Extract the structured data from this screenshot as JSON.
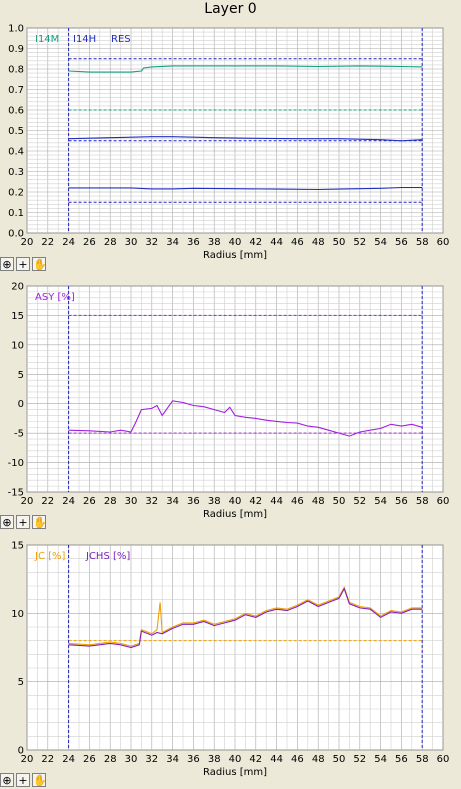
{
  "title": "Layer 0",
  "colors": {
    "grid": "#a8a8a8",
    "gridMinor": "#d0d0d0",
    "marker": "#2020c0",
    "I14M": "#10a080",
    "I14H": "#2030c0",
    "RES": "#2030c0",
    "ASY": "#a020e0",
    "JC": "#f0a000",
    "JCHS": "#8020c0"
  },
  "chart_data": [
    {
      "type": "line",
      "xlabel": "Radius [mm]",
      "xlim": [
        20,
        60
      ],
      "ylim": [
        0,
        1.0
      ],
      "xticks": [
        "20",
        "22",
        "24",
        "26",
        "28",
        "30",
        "32",
        "34",
        "36",
        "38",
        "40",
        "42",
        "44",
        "46",
        "48",
        "50",
        "52",
        "54",
        "56",
        "58",
        "60"
      ],
      "yticks": [
        "0.0",
        "0.1",
        "0.2",
        "0.3",
        "0.4",
        "0.5",
        "0.6",
        "0.7",
        "0.8",
        "0.9",
        "1.0"
      ],
      "markers_x": [
        24,
        58
      ],
      "legend": [
        "I14M",
        "I14H",
        "RES"
      ],
      "series": [
        {
          "name": "I14M",
          "color_key": "I14M",
          "x": [
            24,
            26,
            28,
            30,
            31,
            31.2,
            32,
            34,
            36,
            40,
            44,
            48,
            52,
            56,
            58
          ],
          "y": [
            0.79,
            0.785,
            0.785,
            0.785,
            0.79,
            0.805,
            0.81,
            0.815,
            0.815,
            0.815,
            0.815,
            0.812,
            0.815,
            0.812,
            0.81
          ]
        },
        {
          "name": "I14H",
          "color_key": "I14H",
          "x": [
            24,
            28,
            32,
            34,
            38,
            42,
            46,
            50,
            54,
            56,
            58
          ],
          "y": [
            0.46,
            0.465,
            0.47,
            0.47,
            0.465,
            0.462,
            0.46,
            0.46,
            0.455,
            0.45,
            0.455
          ]
        },
        {
          "name": "RES",
          "color_key": "RES",
          "x": [
            24,
            28,
            30,
            32,
            34,
            36,
            40,
            44,
            48,
            50,
            52,
            54,
            56,
            58
          ],
          "y": [
            0.22,
            0.22,
            0.22,
            0.215,
            0.215,
            0.218,
            0.216,
            0.214,
            0.212,
            0.214,
            0.216,
            0.218,
            0.222,
            0.222
          ]
        }
      ],
      "reference_lines": [
        {
          "y": 0.85,
          "color_key": "marker"
        },
        {
          "y": 0.6,
          "color_key": "I14M"
        },
        {
          "y": 0.45,
          "color_key": "marker"
        },
        {
          "y": 0.15,
          "color_key": "marker"
        }
      ]
    },
    {
      "type": "line",
      "xlabel": "Radius [mm]",
      "xlim": [
        20,
        60
      ],
      "ylim": [
        -15,
        20
      ],
      "xticks": [
        "20",
        "22",
        "24",
        "26",
        "28",
        "30",
        "32",
        "34",
        "36",
        "38",
        "40",
        "42",
        "44",
        "46",
        "48",
        "50",
        "52",
        "54",
        "56",
        "58",
        "60"
      ],
      "yticks": [
        "-15",
        "-10",
        "-5",
        "0",
        "5",
        "10",
        "15",
        "20"
      ],
      "markers_x": [
        24,
        58
      ],
      "legend": [
        "ASY [%]"
      ],
      "series": [
        {
          "name": "ASY [%]",
          "color_key": "ASY",
          "x": [
            24,
            26,
            28,
            29,
            30,
            30.5,
            31,
            32,
            32.5,
            33,
            34,
            35,
            36,
            37,
            38,
            39,
            39.5,
            40,
            41,
            42,
            43,
            44,
            45,
            46,
            47,
            48,
            49,
            50,
            51,
            52,
            53,
            54,
            55,
            56,
            57,
            58
          ],
          "y": [
            -4.5,
            -4.6,
            -4.8,
            -4.5,
            -4.8,
            -3.0,
            -1.0,
            -0.8,
            -0.3,
            -2.0,
            0.5,
            0.2,
            -0.3,
            -0.5,
            -1.0,
            -1.5,
            -0.6,
            -2.0,
            -2.3,
            -2.5,
            -2.8,
            -3.0,
            -3.2,
            -3.3,
            -3.8,
            -4.0,
            -4.5,
            -5.0,
            -5.5,
            -4.8,
            -4.5,
            -4.2,
            -3.5,
            -3.8,
            -3.5,
            -4.0
          ]
        }
      ],
      "reference_lines": [
        {
          "y": 15,
          "color_key": "ASY"
        },
        {
          "y": -5,
          "color_key": "ASY"
        }
      ]
    },
    {
      "type": "line",
      "xlabel": "Radius [mm]",
      "xlim": [
        20,
        60
      ],
      "ylim": [
        0,
        15
      ],
      "xticks": [
        "20",
        "22",
        "24",
        "26",
        "28",
        "30",
        "32",
        "34",
        "36",
        "38",
        "40",
        "42",
        "44",
        "46",
        "48",
        "50",
        "52",
        "54",
        "56",
        "58",
        "60"
      ],
      "yticks": [
        "0",
        "5",
        "10",
        "15"
      ],
      "markers_x": [
        24,
        58
      ],
      "legend": [
        "JC [%]",
        "JCHS [%]"
      ],
      "series": [
        {
          "name": "JC [%]",
          "color_key": "JC",
          "x": [
            24,
            26,
            28,
            29,
            30,
            30.8,
            31,
            32,
            32.5,
            32.8,
            33,
            34,
            35,
            36,
            37,
            38,
            39,
            40,
            41,
            42,
            43,
            44,
            45,
            46,
            47,
            48,
            49,
            50,
            50.5,
            51,
            52,
            53,
            54,
            55,
            56,
            57,
            58
          ],
          "y": [
            7.8,
            7.7,
            7.9,
            7.8,
            7.6,
            7.8,
            8.8,
            8.5,
            8.8,
            10.8,
            8.6,
            9.0,
            9.3,
            9.3,
            9.5,
            9.2,
            9.4,
            9.6,
            10.0,
            9.8,
            10.2,
            10.4,
            10.3,
            10.6,
            11.0,
            10.6,
            10.9,
            11.2,
            11.9,
            10.8,
            10.5,
            10.4,
            9.8,
            10.2,
            10.1,
            10.4,
            10.4
          ]
        },
        {
          "name": "JCHS [%]",
          "color_key": "JCHS",
          "x": [
            24,
            26,
            28,
            29,
            30,
            30.8,
            31,
            32,
            32.5,
            33,
            34,
            35,
            36,
            37,
            38,
            39,
            40,
            41,
            42,
            43,
            44,
            45,
            46,
            47,
            48,
            49,
            50,
            50.5,
            51,
            52,
            53,
            54,
            55,
            56,
            57,
            58
          ],
          "y": [
            7.7,
            7.6,
            7.8,
            7.7,
            7.5,
            7.7,
            8.7,
            8.4,
            8.6,
            8.5,
            8.9,
            9.2,
            9.2,
            9.4,
            9.1,
            9.3,
            9.5,
            9.9,
            9.7,
            10.1,
            10.3,
            10.2,
            10.5,
            10.9,
            10.5,
            10.8,
            11.1,
            11.8,
            10.7,
            10.4,
            10.3,
            9.7,
            10.1,
            10.0,
            10.3,
            10.3
          ]
        }
      ],
      "reference_lines": [
        {
          "y": 8,
          "color_key": "JC"
        }
      ]
    }
  ]
}
